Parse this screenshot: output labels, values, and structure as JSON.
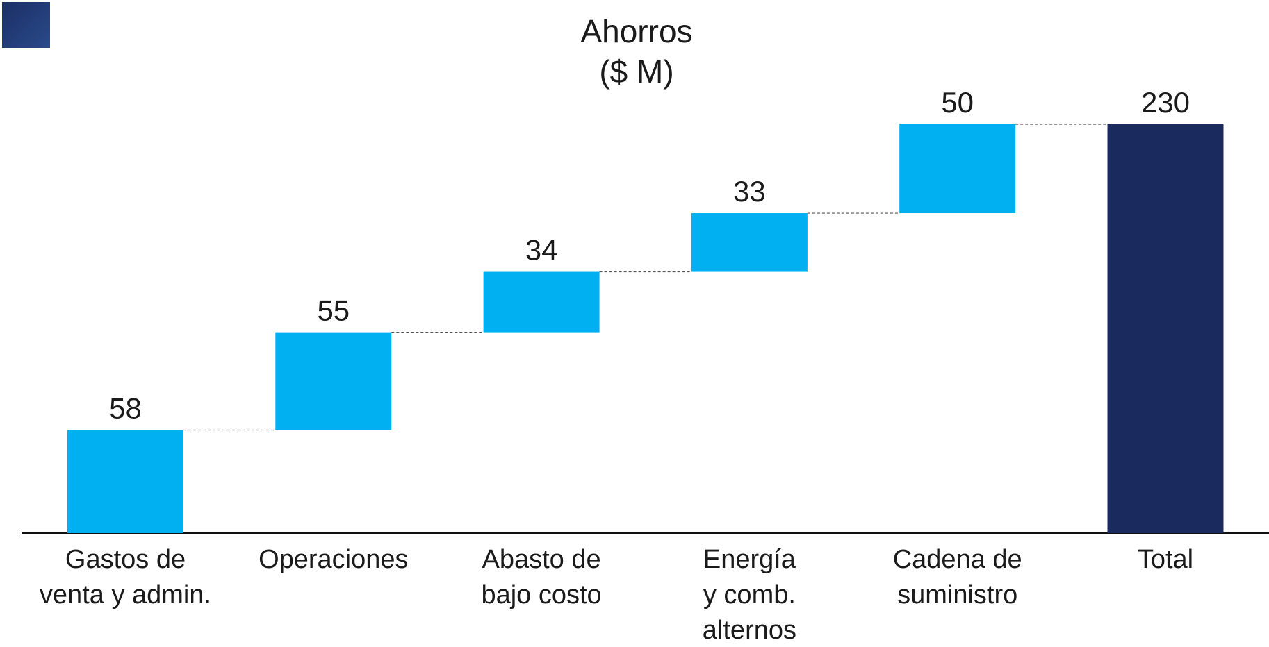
{
  "chart_data": {
    "type": "waterfall",
    "title": [
      "Ahorros",
      "($ M)"
    ],
    "categories": [
      [
        "Gastos de",
        "venta y admin."
      ],
      [
        "Operaciones"
      ],
      [
        "Abasto de",
        "bajo costo"
      ],
      [
        "Energía",
        "y comb.",
        "alternos"
      ],
      [
        "Cadena de",
        "suministro"
      ],
      [
        "Total"
      ]
    ],
    "values": [
      58,
      55,
      34,
      33,
      50,
      230
    ],
    "measure": [
      "relative",
      "relative",
      "relative",
      "relative",
      "relative",
      "total"
    ],
    "colors": {
      "relative": "#00b0f0",
      "total": "#1b2a5e"
    }
  }
}
